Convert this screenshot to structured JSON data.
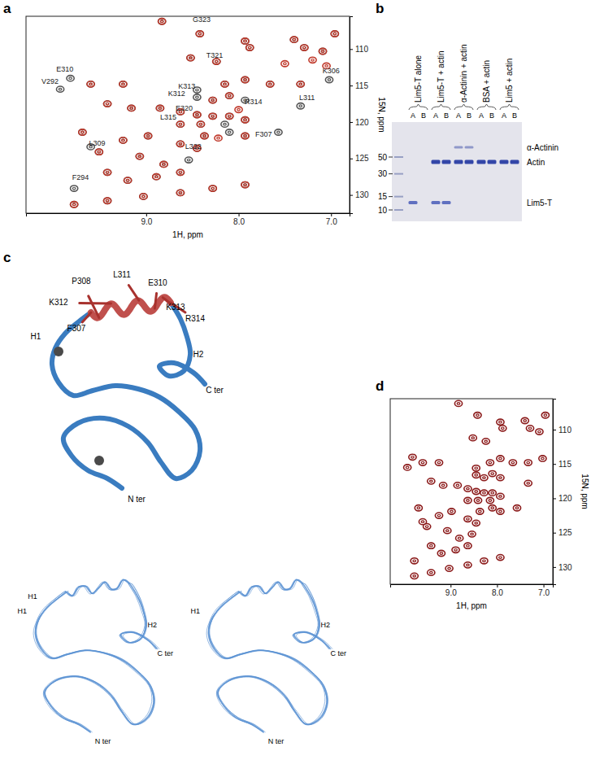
{
  "chart_data": [
    {
      "type": "scatter",
      "panel_label": "a",
      "x_label": "1H, ppm",
      "y_label": "15N, ppm",
      "marker": "contour",
      "xlim": [
        10.3,
        6.8
      ],
      "ylim": [
        105.5,
        132.5
      ],
      "xticks": [
        {
          "value": 9,
          "label": "9.0"
        },
        {
          "value": 8,
          "label": "8.0"
        },
        {
          "value": 7,
          "label": "7.0"
        }
      ],
      "yticks": [
        110,
        115,
        120,
        125,
        130
      ],
      "series": [
        {
          "color": "#555555",
          "x": [
            8.83,
            8.42,
            7.93,
            7.88,
            7.4,
            7.29,
            7.09,
            6.96,
            8.52,
            8.24,
            8.15,
            7.93,
            7.66,
            7.33,
            7.02,
            9.82,
            9.93,
            9.6,
            9.25,
            8.45,
            8.45,
            8.28,
            8.1,
            7.93,
            7.33,
            9.42,
            9.16,
            8.85,
            8.63,
            8.45,
            8.28,
            8.1,
            7.93,
            8.41,
            8.63,
            8.15,
            8.1,
            9.69,
            9.25,
            8.98,
            8.37,
            7.93,
            7.57,
            9.51,
            9.07,
            8.63,
            8.45,
            8.54,
            8.81,
            9.6,
            9.78,
            9.42,
            9.2,
            8.89,
            8.63,
            9.78,
            9.42,
            9.03,
            8.63,
            8.28,
            7.93
          ],
          "values": [
            106.2,
            107.9,
            108.9,
            109.8,
            108.7,
            109.8,
            110.3,
            107.9,
            111.2,
            111.7,
            114.8,
            114.2,
            114.8,
            114.8,
            114.2,
            114.0,
            115.5,
            114.8,
            114.8,
            115.6,
            116.6,
            117.0,
            116.4,
            117.0,
            117.8,
            117.5,
            118.1,
            118.1,
            118.6,
            119.0,
            119.2,
            119.2,
            119.7,
            120.3,
            120.3,
            120.3,
            121.4,
            121.4,
            122.5,
            121.9,
            121.9,
            121.9,
            121.4,
            124.1,
            124.7,
            123.0,
            123.6,
            125.2,
            125.8,
            123.4,
            129.1,
            126.9,
            128.0,
            127.5,
            126.9,
            131.3,
            130.8,
            130.2,
            129.7,
            129.1,
            128.6
          ]
        },
        {
          "color": "#c0392b",
          "x": [
            8.83,
            8.42,
            7.93,
            7.88,
            7.4,
            7.29,
            7.09,
            6.96,
            8.52,
            8.24,
            8.15,
            7.93,
            7.66,
            7.33,
            9.6,
            9.25,
            8.28,
            8.1,
            9.42,
            9.16,
            8.85,
            8.63,
            8.45,
            8.28,
            8.1,
            7.93,
            8.41,
            8.63,
            9.69,
            9.25,
            8.98,
            8.37,
            7.93,
            9.51,
            9.07,
            8.63,
            8.45,
            8.81,
            9.42,
            9.2,
            8.89,
            8.63,
            9.78,
            9.42,
            9.03,
            8.63,
            8.28,
            7.93,
            7.5,
            7.2,
            8.0,
            8.22,
            7.05
          ],
          "values": [
            106.2,
            107.9,
            108.9,
            109.8,
            108.7,
            109.8,
            110.3,
            107.9,
            111.2,
            111.7,
            114.8,
            114.2,
            114.8,
            114.8,
            114.8,
            114.8,
            117.0,
            116.4,
            117.5,
            118.1,
            118.1,
            118.6,
            119.0,
            119.2,
            119.2,
            119.7,
            120.3,
            120.3,
            121.4,
            122.5,
            121.9,
            121.9,
            121.9,
            124.1,
            124.7,
            123.0,
            123.6,
            125.8,
            126.9,
            128.0,
            127.5,
            126.9,
            131.3,
            130.8,
            130.2,
            129.7,
            129.1,
            128.6,
            112.0,
            111.5,
            118.3,
            122.2,
            112.3
          ]
        }
      ],
      "annotations": [
        {
          "text": "G323",
          "x": 8.4,
          "y": 106.0
        },
        {
          "text": "T321",
          "x": 8.26,
          "y": 110.9
        },
        {
          "text": "E310",
          "x": 9.88,
          "y": 112.8
        },
        {
          "text": "V292",
          "x": 10.04,
          "y": 114.5
        },
        {
          "text": "K313",
          "x": 8.56,
          "y": 115.2
        },
        {
          "text": "K306",
          "x": 7.0,
          "y": 113.0
        },
        {
          "text": "K312",
          "x": 8.67,
          "y": 116.2
        },
        {
          "text": "E320",
          "x": 8.59,
          "y": 118.2
        },
        {
          "text": "R314",
          "x": 7.84,
          "y": 117.3
        },
        {
          "text": "L311",
          "x": 7.26,
          "y": 116.7
        },
        {
          "text": "L315",
          "x": 8.76,
          "y": 119.4
        },
        {
          "text": "F307",
          "x": 7.73,
          "y": 121.7
        },
        {
          "text": "L309",
          "x": 9.53,
          "y": 123.0
        },
        {
          "text": "L322",
          "x": 8.49,
          "y": 123.4
        },
        {
          "text": "F294",
          "x": 9.71,
          "y": 127.7
        }
      ]
    },
    {
      "type": "scatter",
      "panel_label": "d",
      "x_label": "1H, ppm",
      "y_label": "15N, ppm",
      "marker": "contour",
      "xlim": [
        10.3,
        6.8
      ],
      "ylim": [
        105.5,
        132.5
      ],
      "xticks": [
        {
          "value": 9,
          "label": "9.0"
        },
        {
          "value": 8,
          "label": "8.0"
        },
        {
          "value": 7,
          "label": "7.0"
        }
      ],
      "yticks": [
        110,
        115,
        120,
        125,
        130
      ],
      "series": [
        {
          "color": "#8b1a1a",
          "x": [
            8.83,
            8.42,
            7.93,
            7.88,
            7.4,
            7.29,
            7.09,
            6.96,
            8.52,
            8.24,
            8.15,
            7.93,
            7.66,
            7.33,
            7.02,
            9.82,
            9.93,
            9.6,
            9.25,
            8.45,
            8.45,
            8.28,
            8.1,
            7.93,
            7.33,
            9.42,
            9.16,
            8.85,
            8.63,
            8.45,
            8.28,
            8.1,
            7.93,
            8.41,
            8.63,
            8.15,
            8.1,
            9.69,
            9.25,
            8.98,
            8.37,
            7.93,
            7.57,
            9.51,
            9.07,
            8.63,
            8.45,
            8.54,
            8.81,
            9.6,
            9.78,
            9.42,
            9.2,
            8.89,
            8.63,
            9.78,
            9.42,
            9.03,
            8.63,
            8.28,
            7.93
          ],
          "values": [
            106.2,
            107.9,
            108.9,
            109.8,
            108.7,
            109.8,
            110.3,
            107.9,
            111.2,
            111.7,
            114.8,
            114.2,
            114.8,
            114.8,
            114.2,
            114.0,
            115.5,
            114.8,
            114.8,
            115.6,
            116.6,
            117.0,
            116.4,
            117.0,
            117.8,
            117.5,
            118.1,
            118.1,
            118.6,
            119.0,
            119.2,
            119.2,
            119.7,
            120.3,
            120.3,
            120.3,
            121.4,
            121.4,
            122.5,
            121.9,
            121.9,
            121.9,
            121.4,
            124.1,
            124.7,
            123.0,
            123.6,
            125.2,
            125.8,
            123.4,
            129.1,
            126.9,
            128.0,
            127.5,
            126.9,
            131.3,
            130.8,
            130.2,
            129.7,
            129.1,
            128.6
          ]
        }
      ]
    }
  ],
  "gel": {
    "panel_label": "b",
    "marker_sizes": [
      50,
      30,
      15,
      10
    ],
    "band_labels": [
      "α-Actinin",
      "Actin",
      "Lim5-T"
    ],
    "lanes": [
      {
        "label": "Lim5-T alone",
        "sublanes": [
          "A",
          "B"
        ],
        "bands": [
          [
            2
          ],
          []
        ]
      },
      {
        "label": "Lim5-T + actin",
        "sublanes": [
          "A",
          "B"
        ],
        "bands": [
          [
            1,
            2
          ],
          [
            1,
            2
          ]
        ]
      },
      {
        "label": "α-Actinin + actin",
        "sublanes": [
          "A",
          "B"
        ],
        "bands": [
          [
            0,
            1
          ],
          [
            0,
            1
          ]
        ]
      },
      {
        "label": "BSA + actin",
        "sublanes": [
          "A",
          "B"
        ],
        "bands": [
          [
            1
          ],
          [
            1
          ]
        ]
      },
      {
        "label": "Lim5 + actin",
        "sublanes": [
          "A",
          "B"
        ],
        "bands": [
          [
            1
          ],
          [
            1
          ]
        ]
      }
    ]
  },
  "structure": {
    "panel_label": "c",
    "labels": [
      "P308",
      "L311",
      "E310",
      "K312",
      "K313",
      "R314",
      "F307",
      "H1",
      "H2",
      "C ter",
      "N ter"
    ],
    "stereo_left": [
      "H1",
      "H1",
      "H2",
      "C ter",
      "N ter"
    ],
    "stereo_right": [
      "H1",
      "H2",
      "C ter",
      "N ter"
    ]
  }
}
